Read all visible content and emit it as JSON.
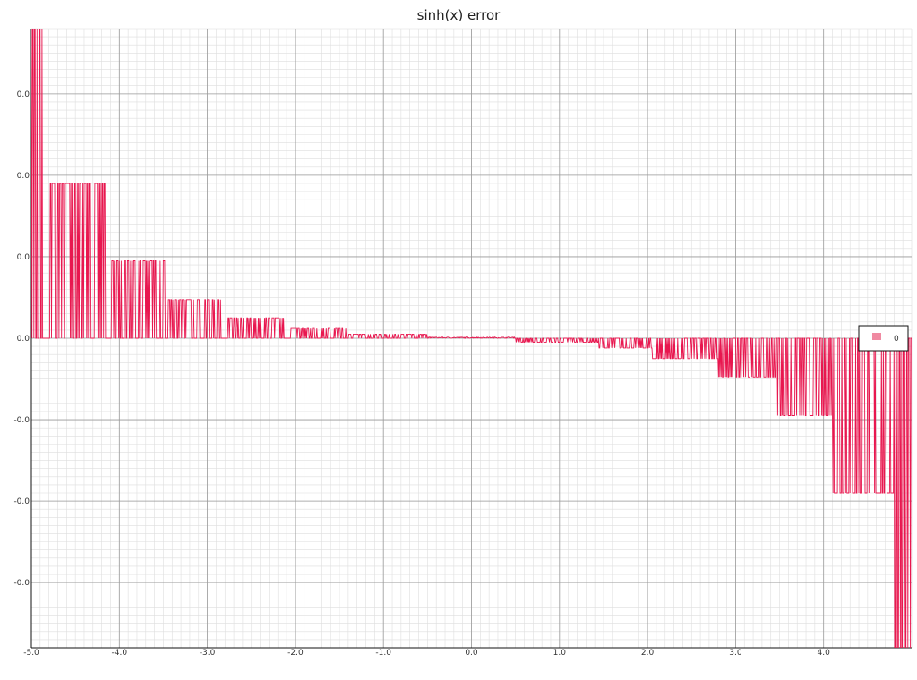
{
  "chart_data": {
    "type": "line",
    "title": "sinh(x) error",
    "xlabel": "",
    "ylabel": "",
    "xlim": [
      -5.0,
      5.0
    ],
    "ylim": [
      -7.6e-06,
      7.6e-06
    ],
    "x_ticks": [
      -5.0,
      -4.0,
      -3.0,
      -2.0,
      -1.0,
      0.0,
      1.0,
      2.0,
      3.0,
      4.0
    ],
    "x_tick_labels": [
      "-5.0",
      "-4.0",
      "-3.0",
      "-2.0",
      "-1.0",
      "0.0",
      "1.0",
      "2.0",
      "3.0",
      "4.0"
    ],
    "y_ticks": [
      6e-06,
      4e-06,
      2e-06,
      0.0,
      -2e-06,
      -4e-06,
      -6e-06
    ],
    "y_tick_labels": [
      "0.0",
      "0.0",
      "0.0",
      "0.0",
      "-0.0",
      "-0.0",
      "-0.0"
    ],
    "grid": true,
    "legend_position": "right",
    "color": "#e8174f",
    "series": [
      {
        "name": "0",
        "description": "step-like error envelope: oscillates between 0 and a level quantized per x-band",
        "bands": [
          {
            "x_start": -5.0,
            "x_end": -4.87,
            "level": 7.8e-06
          },
          {
            "x_start": -4.8,
            "x_end": -4.16,
            "level": 3.8e-06
          },
          {
            "x_start": -4.1,
            "x_end": -3.48,
            "level": 1.9e-06
          },
          {
            "x_start": -3.45,
            "x_end": -2.84,
            "level": 9.5e-07
          },
          {
            "x_start": -2.78,
            "x_end": -2.1,
            "level": 5e-07
          },
          {
            "x_start": -2.05,
            "x_end": -1.42,
            "level": 2.4e-07
          },
          {
            "x_start": -1.42,
            "x_end": -0.5,
            "level": 1e-07
          },
          {
            "x_start": -0.5,
            "x_end": 0.5,
            "level": 3e-08
          },
          {
            "x_start": 0.5,
            "x_end": 1.45,
            "level": -1e-07
          },
          {
            "x_start": 1.45,
            "x_end": 2.05,
            "level": -2.4e-07
          },
          {
            "x_start": 2.05,
            "x_end": 2.8,
            "level": -5e-07
          },
          {
            "x_start": 2.8,
            "x_end": 3.45,
            "level": -9.5e-07
          },
          {
            "x_start": 3.45,
            "x_end": 4.1,
            "level": -1.9e-06
          },
          {
            "x_start": 4.1,
            "x_end": 4.8,
            "level": -3.8e-06
          },
          {
            "x_start": 4.8,
            "x_end": 5.0,
            "level": -7.8e-06
          }
        ]
      }
    ]
  }
}
